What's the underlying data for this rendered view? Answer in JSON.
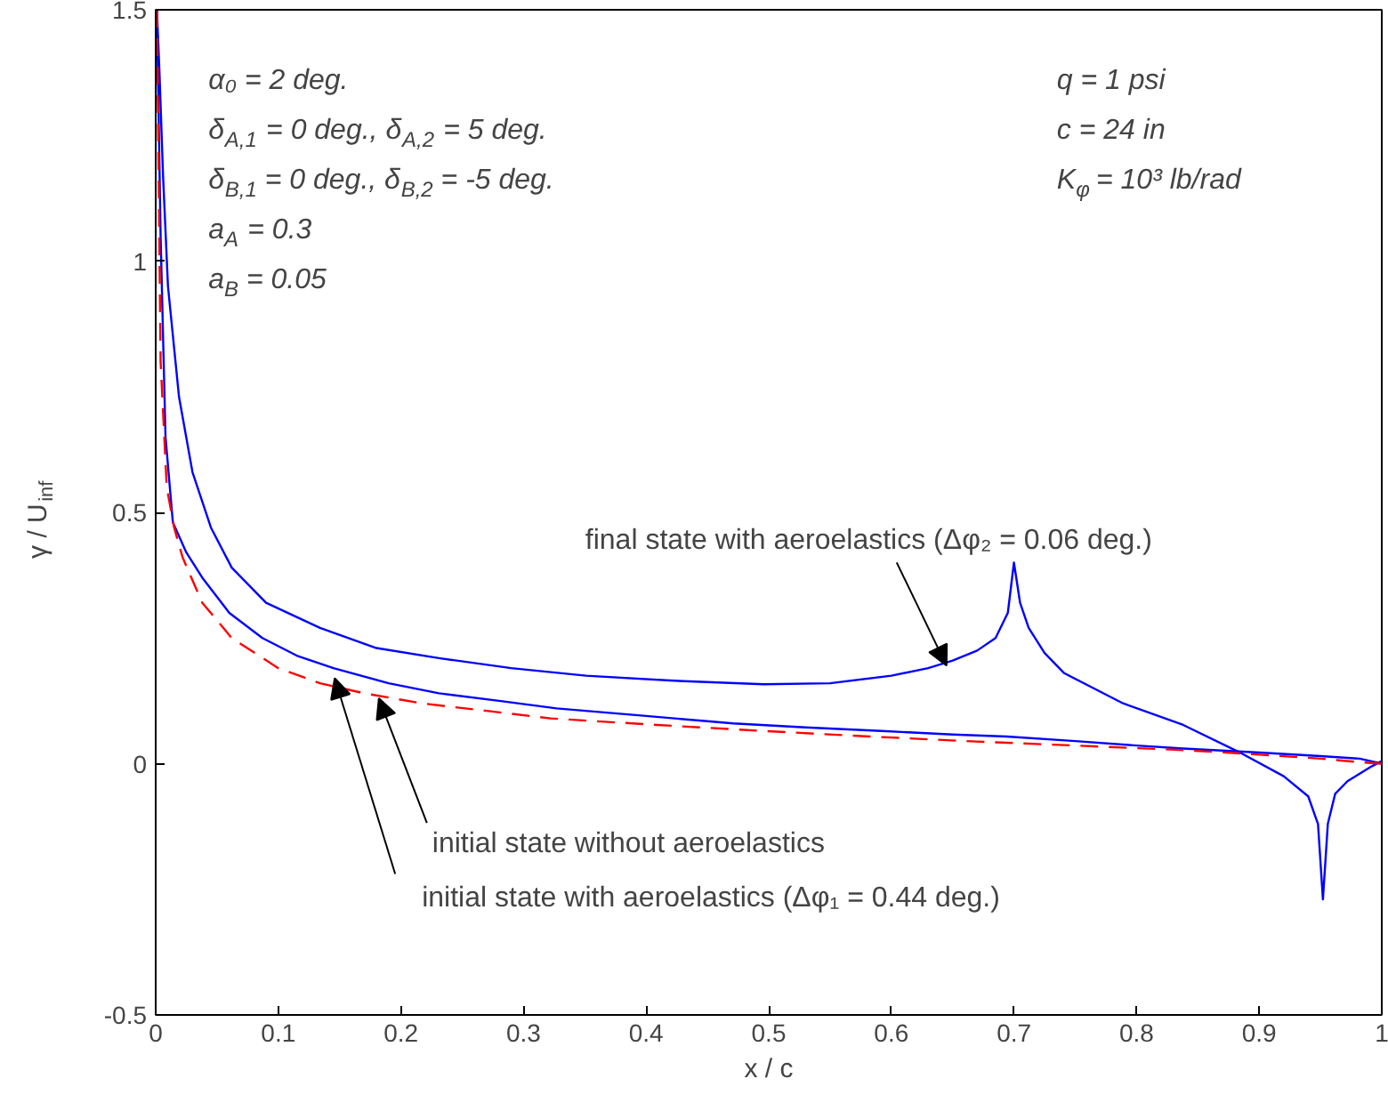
{
  "chart_data": {
    "type": "line",
    "xlabel": "x / c",
    "ylabel": "γ / U$_{inf}$",
    "xlim": [
      0,
      1
    ],
    "ylim": [
      -0.5,
      1.5
    ],
    "xticks": [
      0,
      0.1,
      0.2,
      0.3,
      0.4,
      0.5,
      0.6,
      0.7,
      0.8,
      0.9,
      1
    ],
    "yticks": [
      -0.5,
      0,
      0.5,
      1,
      1.5
    ],
    "grid": false,
    "marker": "none",
    "series": [
      {
        "color": "#0000ff",
        "line_style": "solid",
        "x": [
          0.001,
          0.003,
          0.006,
          0.01,
          0.019,
          0.03,
          0.045,
          0.062,
          0.09,
          0.134,
          0.18,
          0.231,
          0.29,
          0.351,
          0.423,
          0.496,
          0.55,
          0.6,
          0.63,
          0.65,
          0.67,
          0.685,
          0.695,
          0.7,
          0.705,
          0.712,
          0.725,
          0.741,
          0.765,
          0.789,
          0.838,
          0.886,
          0.92,
          0.94,
          0.948,
          0.952,
          0.956,
          0.962,
          0.972,
          0.982,
          0.992,
          1.0
        ],
        "values": [
          1.5,
          1.38,
          1.17,
          0.95,
          0.73,
          0.58,
          0.47,
          0.39,
          0.32,
          0.27,
          0.23,
          0.21,
          0.19,
          0.175,
          0.165,
          0.158,
          0.16,
          0.175,
          0.19,
          0.205,
          0.225,
          0.25,
          0.3,
          0.4,
          0.32,
          0.27,
          0.22,
          0.18,
          0.15,
          0.12,
          0.077,
          0.02,
          -0.025,
          -0.065,
          -0.12,
          -0.27,
          -0.12,
          -0.06,
          -0.035,
          -0.02,
          -0.005,
          0.005
        ]
      },
      {
        "color": "#0000ff",
        "line_style": "solid",
        "x": [
          0.001,
          0.004,
          0.008,
          0.014,
          0.025,
          0.038,
          0.06,
          0.087,
          0.115,
          0.145,
          0.19,
          0.231,
          0.28,
          0.327,
          0.4,
          0.471,
          0.53,
          0.592,
          0.65,
          0.694,
          0.75,
          0.8,
          0.838,
          0.9,
          0.95,
          0.982,
          1.0
        ],
        "values": [
          1.5,
          1.05,
          0.65,
          0.48,
          0.42,
          0.37,
          0.3,
          0.25,
          0.215,
          0.19,
          0.16,
          0.14,
          0.125,
          0.11,
          0.095,
          0.08,
          0.072,
          0.065,
          0.058,
          0.054,
          0.045,
          0.036,
          0.03,
          0.022,
          0.015,
          0.01,
          0.0
        ]
      },
      {
        "color": "#ff0000",
        "line_style": "dashed",
        "x": [
          0.001,
          0.004,
          0.009,
          0.015,
          0.022,
          0.038,
          0.062,
          0.1,
          0.134,
          0.17,
          0.217,
          0.27,
          0.322,
          0.409,
          0.496,
          0.582,
          0.669,
          0.75,
          0.838,
          0.9,
          0.95,
          0.982,
          1.0
        ],
        "values": [
          1.5,
          0.8,
          0.55,
          0.47,
          0.41,
          0.32,
          0.25,
          0.19,
          0.16,
          0.14,
          0.12,
          0.105,
          0.09,
          0.077,
          0.065,
          0.054,
          0.044,
          0.036,
          0.027,
          0.018,
          0.01,
          0.003,
          0.0
        ]
      }
    ],
    "annotations": [
      "α₀ = 2 deg.",
      "δ$_{A,1}$ = 0 deg., δ$_{A,2}$ = 5 deg.",
      "δ$_{B,1}$ = 0 deg., δ$_{B,2}$ = -5 deg.",
      "a$_{A}$ = 0.3",
      "a$_{B}$ = 0.05",
      "q = 1 psi",
      "c = 24 in",
      "K$_{φ}$ = 10³ lb/rad",
      {
        "text": "final state with aeroelastics (Δφ₂ = 0.06 deg.)",
        "x": 0.645,
        "y": 0.195
      },
      {
        "text": "initial state without aeroelastics",
        "x": 0.182,
        "y": 0.13
      },
      {
        "text": "initial state with aeroelastics  (Δφ₁ = 0.44 deg.)",
        "x": 0.146,
        "y": 0.17
      }
    ]
  }
}
